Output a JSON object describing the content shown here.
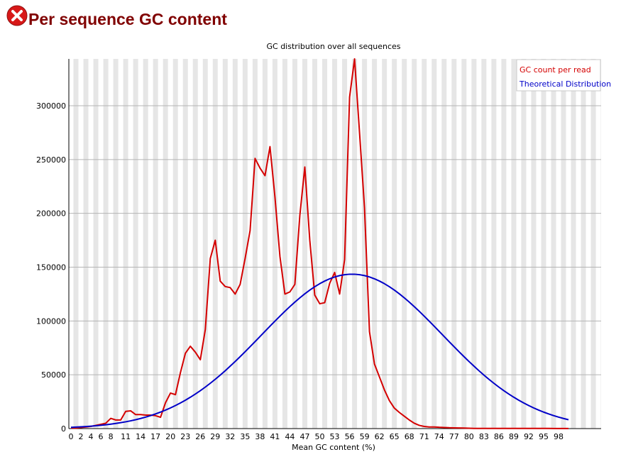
{
  "page_title": "Per sequence GC content",
  "chart_data": {
    "type": "line",
    "title": "GC distribution over all sequences",
    "xlabel": "Mean GC content (%)",
    "categories": [
      "0",
      null,
      "2",
      null,
      "4",
      null,
      "6",
      null,
      "8",
      null,
      null,
      "11",
      null,
      null,
      "14",
      null,
      null,
      "17",
      null,
      null,
      "20",
      null,
      null,
      "23",
      null,
      null,
      "26",
      null,
      null,
      "29",
      null,
      null,
      "32",
      null,
      null,
      "35",
      null,
      null,
      "38",
      null,
      null,
      "41",
      null,
      null,
      "44",
      null,
      null,
      "47",
      null,
      null,
      "50",
      null,
      null,
      "53",
      null,
      null,
      "56",
      null,
      null,
      "59",
      null,
      null,
      "62",
      null,
      null,
      "65",
      null,
      null,
      "68",
      null,
      null,
      "71",
      null,
      null,
      "74",
      null,
      null,
      "77",
      null,
      null,
      "80",
      null,
      null,
      "83",
      null,
      null,
      "86",
      null,
      null,
      "89",
      null,
      null,
      "92",
      null,
      null,
      "95",
      null,
      null,
      "98",
      null,
      null
    ],
    "series": [
      {
        "name": "GC count per read",
        "color": "#d40000",
        "values": [
          500,
          500,
          1000,
          1500,
          2000,
          3000,
          4000,
          5000,
          9500,
          8000,
          8000,
          16000,
          16500,
          13000,
          13000,
          12500,
          12500,
          12000,
          10500,
          24000,
          33000,
          31500,
          52000,
          70000,
          76500,
          71000,
          64000,
          92000,
          158000,
          175000,
          137000,
          132000,
          131000,
          125000,
          134000,
          158000,
          184000,
          251000,
          242000,
          235000,
          262000,
          215000,
          160000,
          125000,
          127000,
          134000,
          198000,
          243000,
          175000,
          124000,
          116000,
          117000,
          135000,
          145000,
          125000,
          157000,
          308000,
          343500,
          275000,
          205000,
          90000,
          60000,
          48000,
          36000,
          26000,
          19000,
          15000,
          11500,
          8000,
          5000,
          3000,
          2000,
          1500,
          1500,
          1200,
          1000,
          800,
          700,
          600,
          500,
          300,
          200,
          200,
          200,
          200,
          200,
          200,
          200,
          200,
          200,
          200,
          200,
          200,
          200,
          200,
          200,
          200,
          100,
          100,
          100,
          100
        ]
      },
      {
        "name": "Theoretical Distribution",
        "color": "#0000c8",
        "values": [
          1160,
          1370,
          1620,
          1910,
          2240,
          2620,
          3060,
          3550,
          4120,
          4760,
          5490,
          6310,
          7220,
          8250,
          9390,
          10660,
          12060,
          13620,
          15330,
          17180,
          19210,
          21420,
          23790,
          26380,
          29150,
          32090,
          35240,
          38570,
          42120,
          45800,
          49720,
          53770,
          57990,
          62350,
          66830,
          71420,
          76100,
          80830,
          85610,
          90380,
          95150,
          99850,
          104480,
          108990,
          113350,
          117530,
          121500,
          125230,
          128680,
          131820,
          134630,
          137090,
          139180,
          140870,
          142150,
          143010,
          143440,
          143440,
          143010,
          142150,
          140870,
          139180,
          137090,
          134630,
          131820,
          128680,
          125230,
          121500,
          117530,
          113350,
          108990,
          104480,
          99850,
          95150,
          90380,
          85610,
          80830,
          76100,
          71420,
          66830,
          62350,
          57990,
          53770,
          49720,
          45800,
          42120,
          38570,
          35240,
          32090,
          29150,
          26380,
          23790,
          21420,
          19210,
          17180,
          15330,
          13620,
          12060,
          10660,
          9390,
          8250
        ]
      }
    ],
    "ylim": [
      0,
      343500
    ],
    "yticks": [
      0,
      50000,
      100000,
      150000,
      200000,
      250000,
      300000
    ],
    "grid": true,
    "legend": "top-right"
  }
}
